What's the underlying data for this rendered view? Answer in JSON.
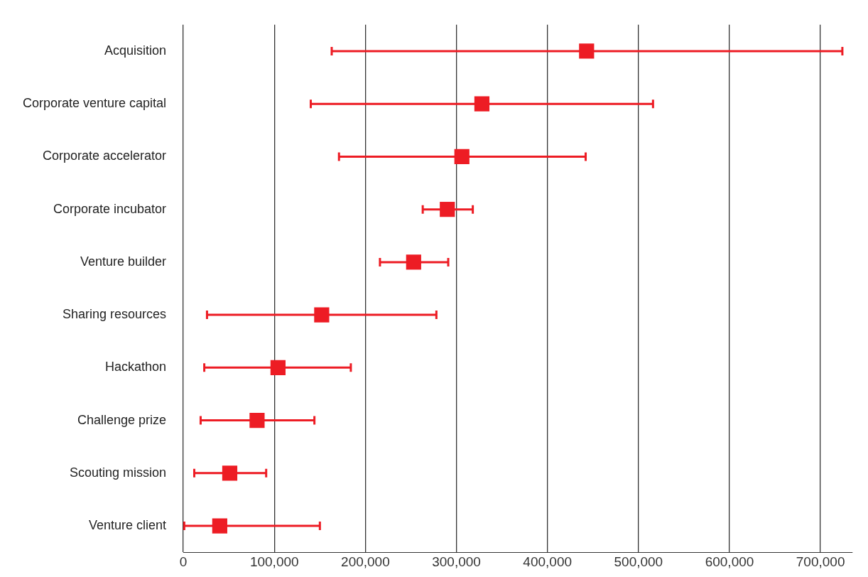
{
  "chart_data": {
    "type": "scatter",
    "orientation": "horizontal",
    "marker": "square",
    "grid": "x",
    "categories": [
      "Acquisition",
      "Corporate venture capital",
      "Corporate accelerator",
      "Corporate incubator",
      "Venture builder",
      "Sharing resources",
      "Hackathon",
      "Challenge prize",
      "Scouting mission",
      "Venture client"
    ],
    "series": [
      {
        "color": "#ed1c24",
        "values": [
          443000,
          328000,
          306000,
          290000,
          253000,
          152000,
          104000,
          81000,
          51000,
          40000
        ],
        "errors": [
          [
            163000,
            724000
          ],
          [
            140000,
            516000
          ],
          [
            171000,
            442000
          ],
          [
            263000,
            318000
          ],
          [
            216000,
            291000
          ],
          [
            26000,
            278000
          ],
          [
            23000,
            184000
          ],
          [
            19000,
            144000
          ],
          [
            12000,
            91000
          ],
          [
            1000,
            150000
          ]
        ]
      }
    ],
    "xlim": [
      0,
      735000
    ],
    "xticks": [
      {
        "value": 0,
        "label": "0"
      },
      {
        "value": 100000,
        "label": "100,000"
      },
      {
        "value": 200000,
        "label": "200,000"
      },
      {
        "value": 300000,
        "label": "300,000"
      },
      {
        "value": 400000,
        "label": "400,000"
      },
      {
        "value": 500000,
        "label": "500,000"
      },
      {
        "value": 600000,
        "label": "600,000"
      },
      {
        "value": 700000,
        "label": "700,000"
      }
    ]
  }
}
